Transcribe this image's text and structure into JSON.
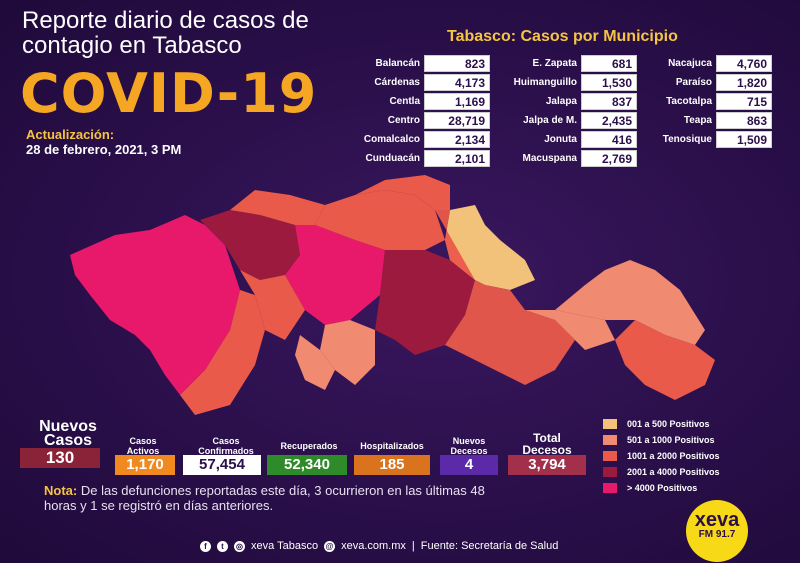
{
  "header": {
    "title": "Reporte diario de casos de contagio en Tabasco",
    "disease": "COVID-19",
    "update_label": "Actualización:",
    "update_date": "28 de febrero, 2021, 3 PM"
  },
  "municipios": {
    "title": "Tabasco: Casos por Municipio",
    "col1": [
      {
        "name": "Balancán",
        "value": "823"
      },
      {
        "name": "Cárdenas",
        "value": "4,173"
      },
      {
        "name": "Centla",
        "value": "1,169"
      },
      {
        "name": "Centro",
        "value": "28,719"
      },
      {
        "name": "Comalcalco",
        "value": "2,134"
      },
      {
        "name": "Cunduacán",
        "value": "2,101"
      }
    ],
    "col2": [
      {
        "name": "E. Zapata",
        "value": "681"
      },
      {
        "name": "Huimanguillo",
        "value": "1,530"
      },
      {
        "name": "Jalapa",
        "value": "837"
      },
      {
        "name": "Jalpa de M.",
        "value": "2,435"
      },
      {
        "name": "Jonuta",
        "value": "416"
      },
      {
        "name": "Macuspana",
        "value": "2,769"
      }
    ],
    "col3": [
      {
        "name": "Nacajuca",
        "value": "4,760"
      },
      {
        "name": "Paraíso",
        "value": "1,820"
      },
      {
        "name": "Tacotalpa",
        "value": "715"
      },
      {
        "name": "Teapa",
        "value": "863"
      },
      {
        "name": "Tenosique",
        "value": "1,509"
      }
    ]
  },
  "stats": {
    "nuevos_label": "Nuevos Casos",
    "nuevos_value": "130",
    "activos_label": "Casos Activos",
    "activos_value": "1,170",
    "confirmados_label": "Casos Confirmados",
    "confirmados_value": "57,454",
    "recuperados_label": "Recuperados",
    "recuperados_value": "52,340",
    "hospitalizados_label": "Hospitalizados",
    "hospitalizados_value": "185",
    "nuevos_decesos_label": "Nuevos Decesos",
    "nuevos_decesos_value": "4",
    "total_decesos_label": "Total Decesos",
    "total_decesos_value": "3,794"
  },
  "legend": [
    {
      "label": "001 a 500 Positivos",
      "color": "#f3c27a"
    },
    {
      "label": "501 a 1000 Positivos",
      "color": "#f08a70"
    },
    {
      "label": "1001 a 2000 Positivos",
      "color": "#ea5a4a"
    },
    {
      "label": "2001 a 4000 Positivos",
      "color": "#9b1a3d"
    },
    {
      "label": "> 4000 Positivos",
      "color": "#e8196a"
    }
  ],
  "nota": {
    "label": "Nota:",
    "text": "De las defunciones reportadas este día, 3 ocurrieron en las últimas 48 horas y 1 se registró en días anteriores."
  },
  "footer": {
    "social": "xeva Tabasco",
    "web": "xeva.com.mx",
    "source": "Fuente: Secretaría de Salud"
  },
  "logo": {
    "name": "xeva",
    "freq": "FM 91.7"
  },
  "colors": {
    "activos": "#f08a20",
    "confirmados": "#ffffff",
    "recuperados": "#2f8a2a",
    "hospitalizados": "#d9731e",
    "nuevos_decesos": "#5a2aa8",
    "total_decesos": "#a2304a",
    "nuevos": "#8a2238"
  }
}
